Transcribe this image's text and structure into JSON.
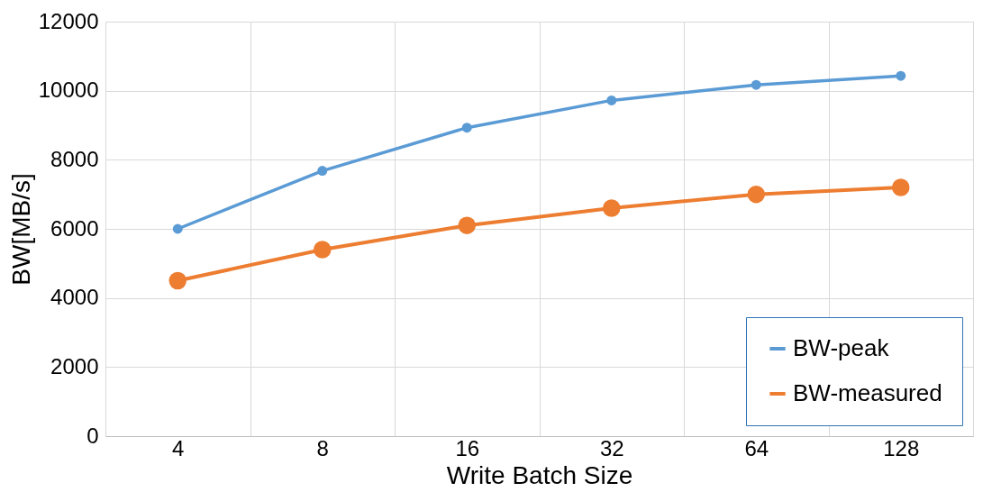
{
  "chart_data": {
    "type": "line",
    "xlabel": "Write Batch Size",
    "ylabel": "BW[MB/s]",
    "categories": [
      "4",
      "8",
      "16",
      "32",
      "64",
      "128"
    ],
    "series": [
      {
        "name": "BW-peak",
        "color": "#5b9bd5",
        "values": [
          6000,
          7680,
          8930,
          9720,
          10170,
          10430
        ]
      },
      {
        "name": "BW-measured",
        "color": "#ed7d31",
        "values": [
          4500,
          5400,
          6100,
          6600,
          7000,
          7200
        ]
      }
    ],
    "ylim": [
      0,
      12000
    ],
    "yticks": [
      0,
      2000,
      4000,
      6000,
      8000,
      10000,
      12000
    ],
    "grid": true,
    "legend": "bottom right",
    "marker": "circle",
    "line_style": "solid"
  }
}
